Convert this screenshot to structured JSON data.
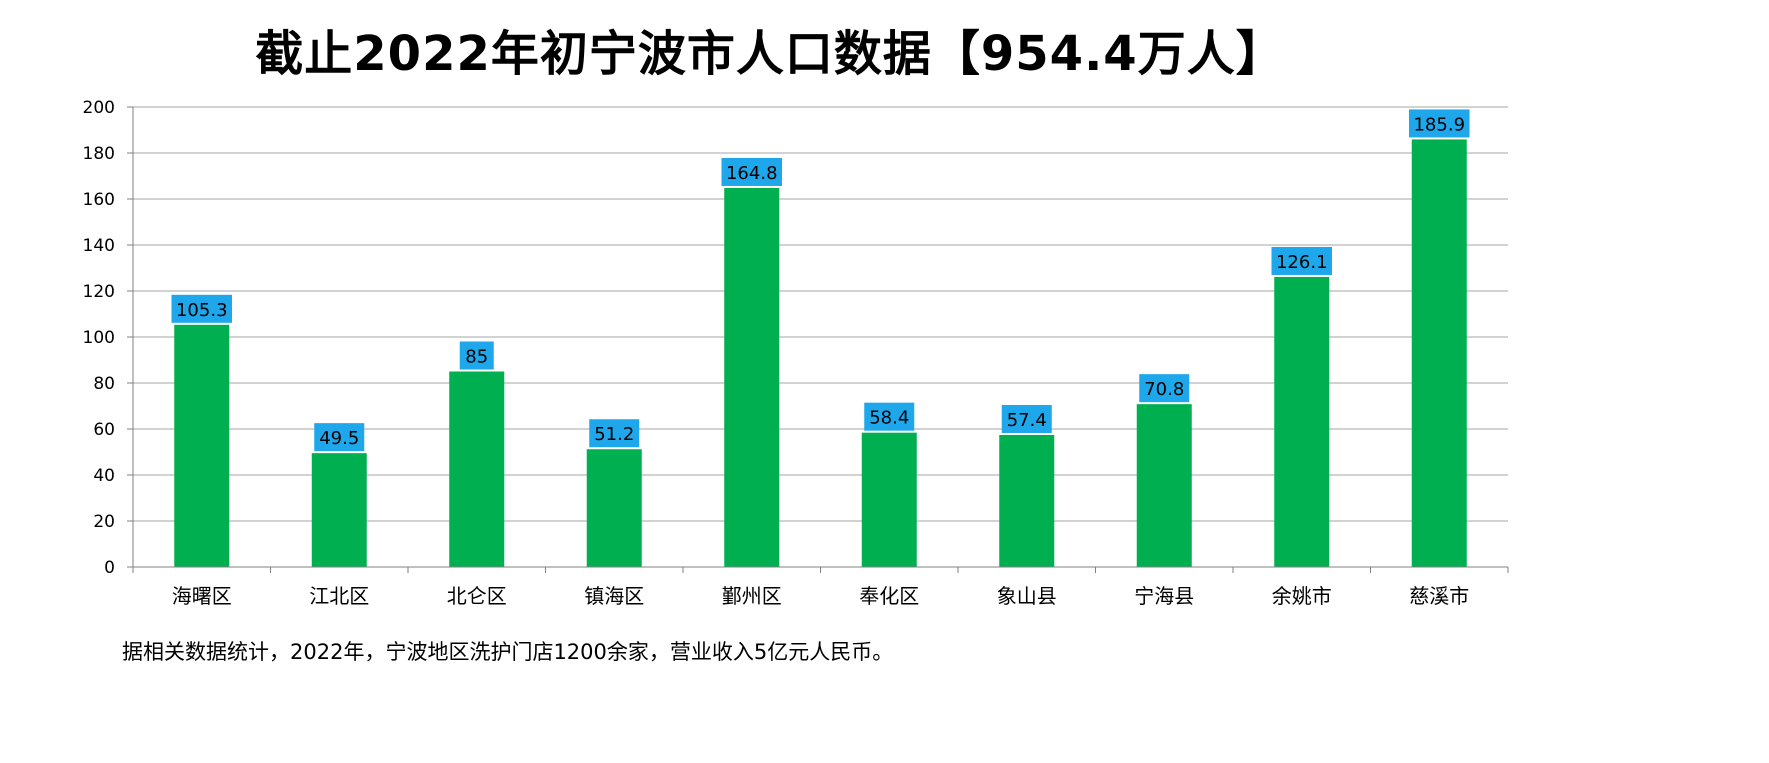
{
  "chart_data": {
    "type": "bar",
    "title": "截止2022年初宁波市人口数据【954.4万人】",
    "categories": [
      "海曙区",
      "江北区",
      "北仑区",
      "镇海区",
      "鄞州区",
      "奉化区",
      "象山县",
      "宁海县",
      "余姚市",
      "慈溪市"
    ],
    "values": [
      105.3,
      49.5,
      85,
      51.2,
      164.8,
      58.4,
      57.4,
      70.8,
      126.1,
      185.9
    ],
    "value_labels": [
      "105.3",
      "49.5",
      "85",
      "51.2",
      "164.8",
      "58.4",
      "57.4",
      "70.8",
      "126.1",
      "185.9"
    ],
    "ylim": [
      0,
      200
    ],
    "yticks": [
      0,
      20,
      40,
      60,
      80,
      100,
      120,
      140,
      160,
      180,
      200
    ],
    "xlabel": "",
    "ylabel": "",
    "grid": true,
    "legend": "none",
    "colors": {
      "bar": "#00b050",
      "label_bg": "#1ea7ea",
      "grid": "#a6a6a6",
      "axis": "#808080"
    }
  },
  "footnote": "据相关数据统计，2022年，宁波地区洗护门店1200余家，营业收入5亿元人民币。"
}
